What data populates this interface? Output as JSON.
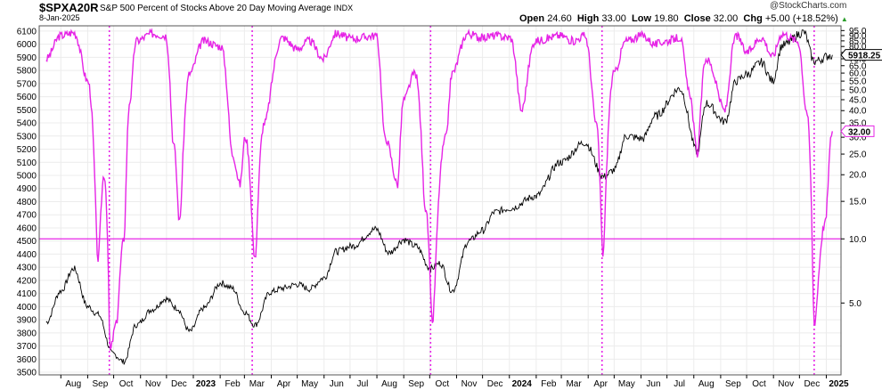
{
  "header": {
    "symbol": "$SPXA20R",
    "description": "S&P 500 Percent of Stocks Above 20 Day Moving Average",
    "exchange": "INDX",
    "date": "8-Jan-2025",
    "open_label": "Open",
    "open": "24.60",
    "high_label": "High",
    "high": "33.00",
    "low_label": "Low",
    "low": "19.80",
    "close_label": "Close",
    "close": "32.00",
    "chg_label": "Chg",
    "chg": "+5.00 (+18.52%)",
    "credit": "@StockCharts.com"
  },
  "colors": {
    "breadth_line": "#e624e6",
    "price_line": "#000000",
    "reference_line": "#e624e6",
    "vertical_markers": "#e624e6",
    "grid": "#ececec"
  },
  "chart_data": {
    "type": "line",
    "left_axis": {
      "series": "S&P 500 price",
      "range": [
        3480,
        6140
      ],
      "ticks": [
        "6100",
        "6000",
        "5900",
        "5800",
        "5700",
        "5600",
        "5500",
        "5400",
        "5300",
        "5200",
        "5100",
        "5000",
        "4900",
        "4800",
        "4700",
        "4600",
        "4500",
        "4400",
        "4300",
        "4200",
        "4100",
        "4000",
        "3900",
        "3800",
        "3700",
        "3600",
        "3500"
      ]
    },
    "right_axis": {
      "series": "Percent of stocks above 20-day MA",
      "scale": "log",
      "range": [
        2.3,
        100
      ],
      "ticks": [
        "95.0",
        "90.0",
        "85.0",
        "80.0",
        "75.0",
        "70.0",
        "65.0",
        "60.0",
        "55.0",
        "50.0",
        "45.0",
        "40.0",
        "35.0",
        "30.0",
        "25.0",
        "20.0",
        "15.0",
        "10.0",
        "5.0"
      ]
    },
    "x_ticks": [
      "Aug",
      "Sep",
      "Oct",
      "Nov",
      "Dec",
      "2023",
      "Feb",
      "Mar",
      "Apr",
      "May",
      "Jun",
      "Jul",
      "Aug",
      "Sep",
      "Oct",
      "Nov",
      "Dec",
      "2024",
      "Feb",
      "Mar",
      "Apr",
      "May",
      "Jun",
      "Jul",
      "Aug",
      "Sep",
      "Oct",
      "Nov",
      "Dec",
      "2025"
    ],
    "x_tick_bold": [
      "2023",
      "2024",
      "2025"
    ],
    "reference_line_value": 10.0,
    "vertical_markers_at": [
      "2022-09-26",
      "2023-03-10",
      "2023-10-02",
      "2024-04-17",
      "2024-12-18"
    ],
    "last_values": {
      "price": "5918.25",
      "percent": "32.00"
    },
    "price_series": {
      "dates": [
        "2022-07-15",
        "2022-08-01",
        "2022-08-16",
        "2022-09-01",
        "2022-09-13",
        "2022-09-30",
        "2022-10-13",
        "2022-10-27",
        "2022-11-15",
        "2022-11-30",
        "2022-12-13",
        "2022-12-28",
        "2023-01-13",
        "2023-02-02",
        "2023-02-15",
        "2023-03-01",
        "2023-03-13",
        "2023-03-31",
        "2023-04-14",
        "2023-05-01",
        "2023-05-15",
        "2023-06-01",
        "2023-06-15",
        "2023-07-03",
        "2023-07-31",
        "2023-08-15",
        "2023-09-01",
        "2023-09-15",
        "2023-10-02",
        "2023-10-13",
        "2023-10-27",
        "2023-11-15",
        "2023-12-01",
        "2023-12-15",
        "2024-01-02",
        "2024-01-31",
        "2024-02-29",
        "2024-03-28",
        "2024-04-19",
        "2024-05-01",
        "2024-05-15",
        "2024-06-03",
        "2024-06-17",
        "2024-07-16",
        "2024-08-05",
        "2024-08-15",
        "2024-09-06",
        "2024-09-19",
        "2024-10-01",
        "2024-10-18",
        "2024-10-31",
        "2024-11-11",
        "2024-12-06",
        "2024-12-18",
        "2025-01-08"
      ],
      "values": [
        3880,
        4120,
        4290,
        4000,
        3940,
        3640,
        3580,
        3860,
        3980,
        4060,
        3990,
        3810,
        3990,
        4180,
        4140,
        3960,
        3860,
        4110,
        4140,
        4170,
        4135,
        4220,
        4420,
        4460,
        4590,
        4410,
        4510,
        4460,
        4290,
        4330,
        4120,
        4500,
        4580,
        4720,
        4750,
        4840,
        5100,
        5250,
        4990,
        5040,
        5300,
        5280,
        5450,
        5660,
        5180,
        5550,
        5410,
        5720,
        5770,
        5860,
        5720,
        5990,
        6090,
        5870,
        5918
      ]
    },
    "percent_series": {
      "dates": [
        "2022-07-15",
        "2022-08-01",
        "2022-08-16",
        "2022-09-01",
        "2022-09-13",
        "2022-09-20",
        "2022-09-27",
        "2022-10-04",
        "2022-10-13",
        "2022-10-20",
        "2022-10-27",
        "2022-11-15",
        "2022-11-30",
        "2022-12-09",
        "2022-12-16",
        "2022-12-28",
        "2023-01-13",
        "2023-02-02",
        "2023-02-15",
        "2023-02-24",
        "2023-03-02",
        "2023-03-13",
        "2023-03-24",
        "2023-04-14",
        "2023-05-01",
        "2023-05-15",
        "2023-05-31",
        "2023-06-15",
        "2023-07-03",
        "2023-07-31",
        "2023-08-10",
        "2023-08-25",
        "2023-09-01",
        "2023-09-14",
        "2023-09-26",
        "2023-10-04",
        "2023-10-20",
        "2023-10-27",
        "2023-11-14",
        "2023-11-30",
        "2023-12-15",
        "2024-01-02",
        "2024-01-15",
        "2024-01-31",
        "2024-02-29",
        "2024-03-15",
        "2024-03-28",
        "2024-04-10",
        "2024-04-18",
        "2024-05-01",
        "2024-05-15",
        "2024-06-03",
        "2024-06-17",
        "2024-07-01",
        "2024-07-16",
        "2024-07-26",
        "2024-08-05",
        "2024-08-15",
        "2024-09-06",
        "2024-09-19",
        "2024-10-01",
        "2024-10-18",
        "2024-10-31",
        "2024-11-11",
        "2024-11-29",
        "2024-12-09",
        "2024-12-18",
        "2024-12-31",
        "2025-01-08"
      ],
      "values": [
        70,
        90,
        93,
        55,
        8,
        20,
        3,
        4,
        10,
        45,
        85,
        92,
        90,
        28,
        12,
        60,
        85,
        80,
        25,
        18,
        30,
        8,
        35,
        88,
        78,
        85,
        70,
        92,
        87,
        90,
        30,
        18,
        45,
        60,
        14,
        4,
        30,
        60,
        92,
        88,
        90,
        88,
        40,
        85,
        90,
        85,
        90,
        35,
        8.5,
        60,
        85,
        90,
        82,
        85,
        88,
        50,
        25,
        70,
        40,
        90,
        75,
        88,
        72,
        92,
        85,
        40,
        4,
        12,
        32
      ]
    }
  }
}
